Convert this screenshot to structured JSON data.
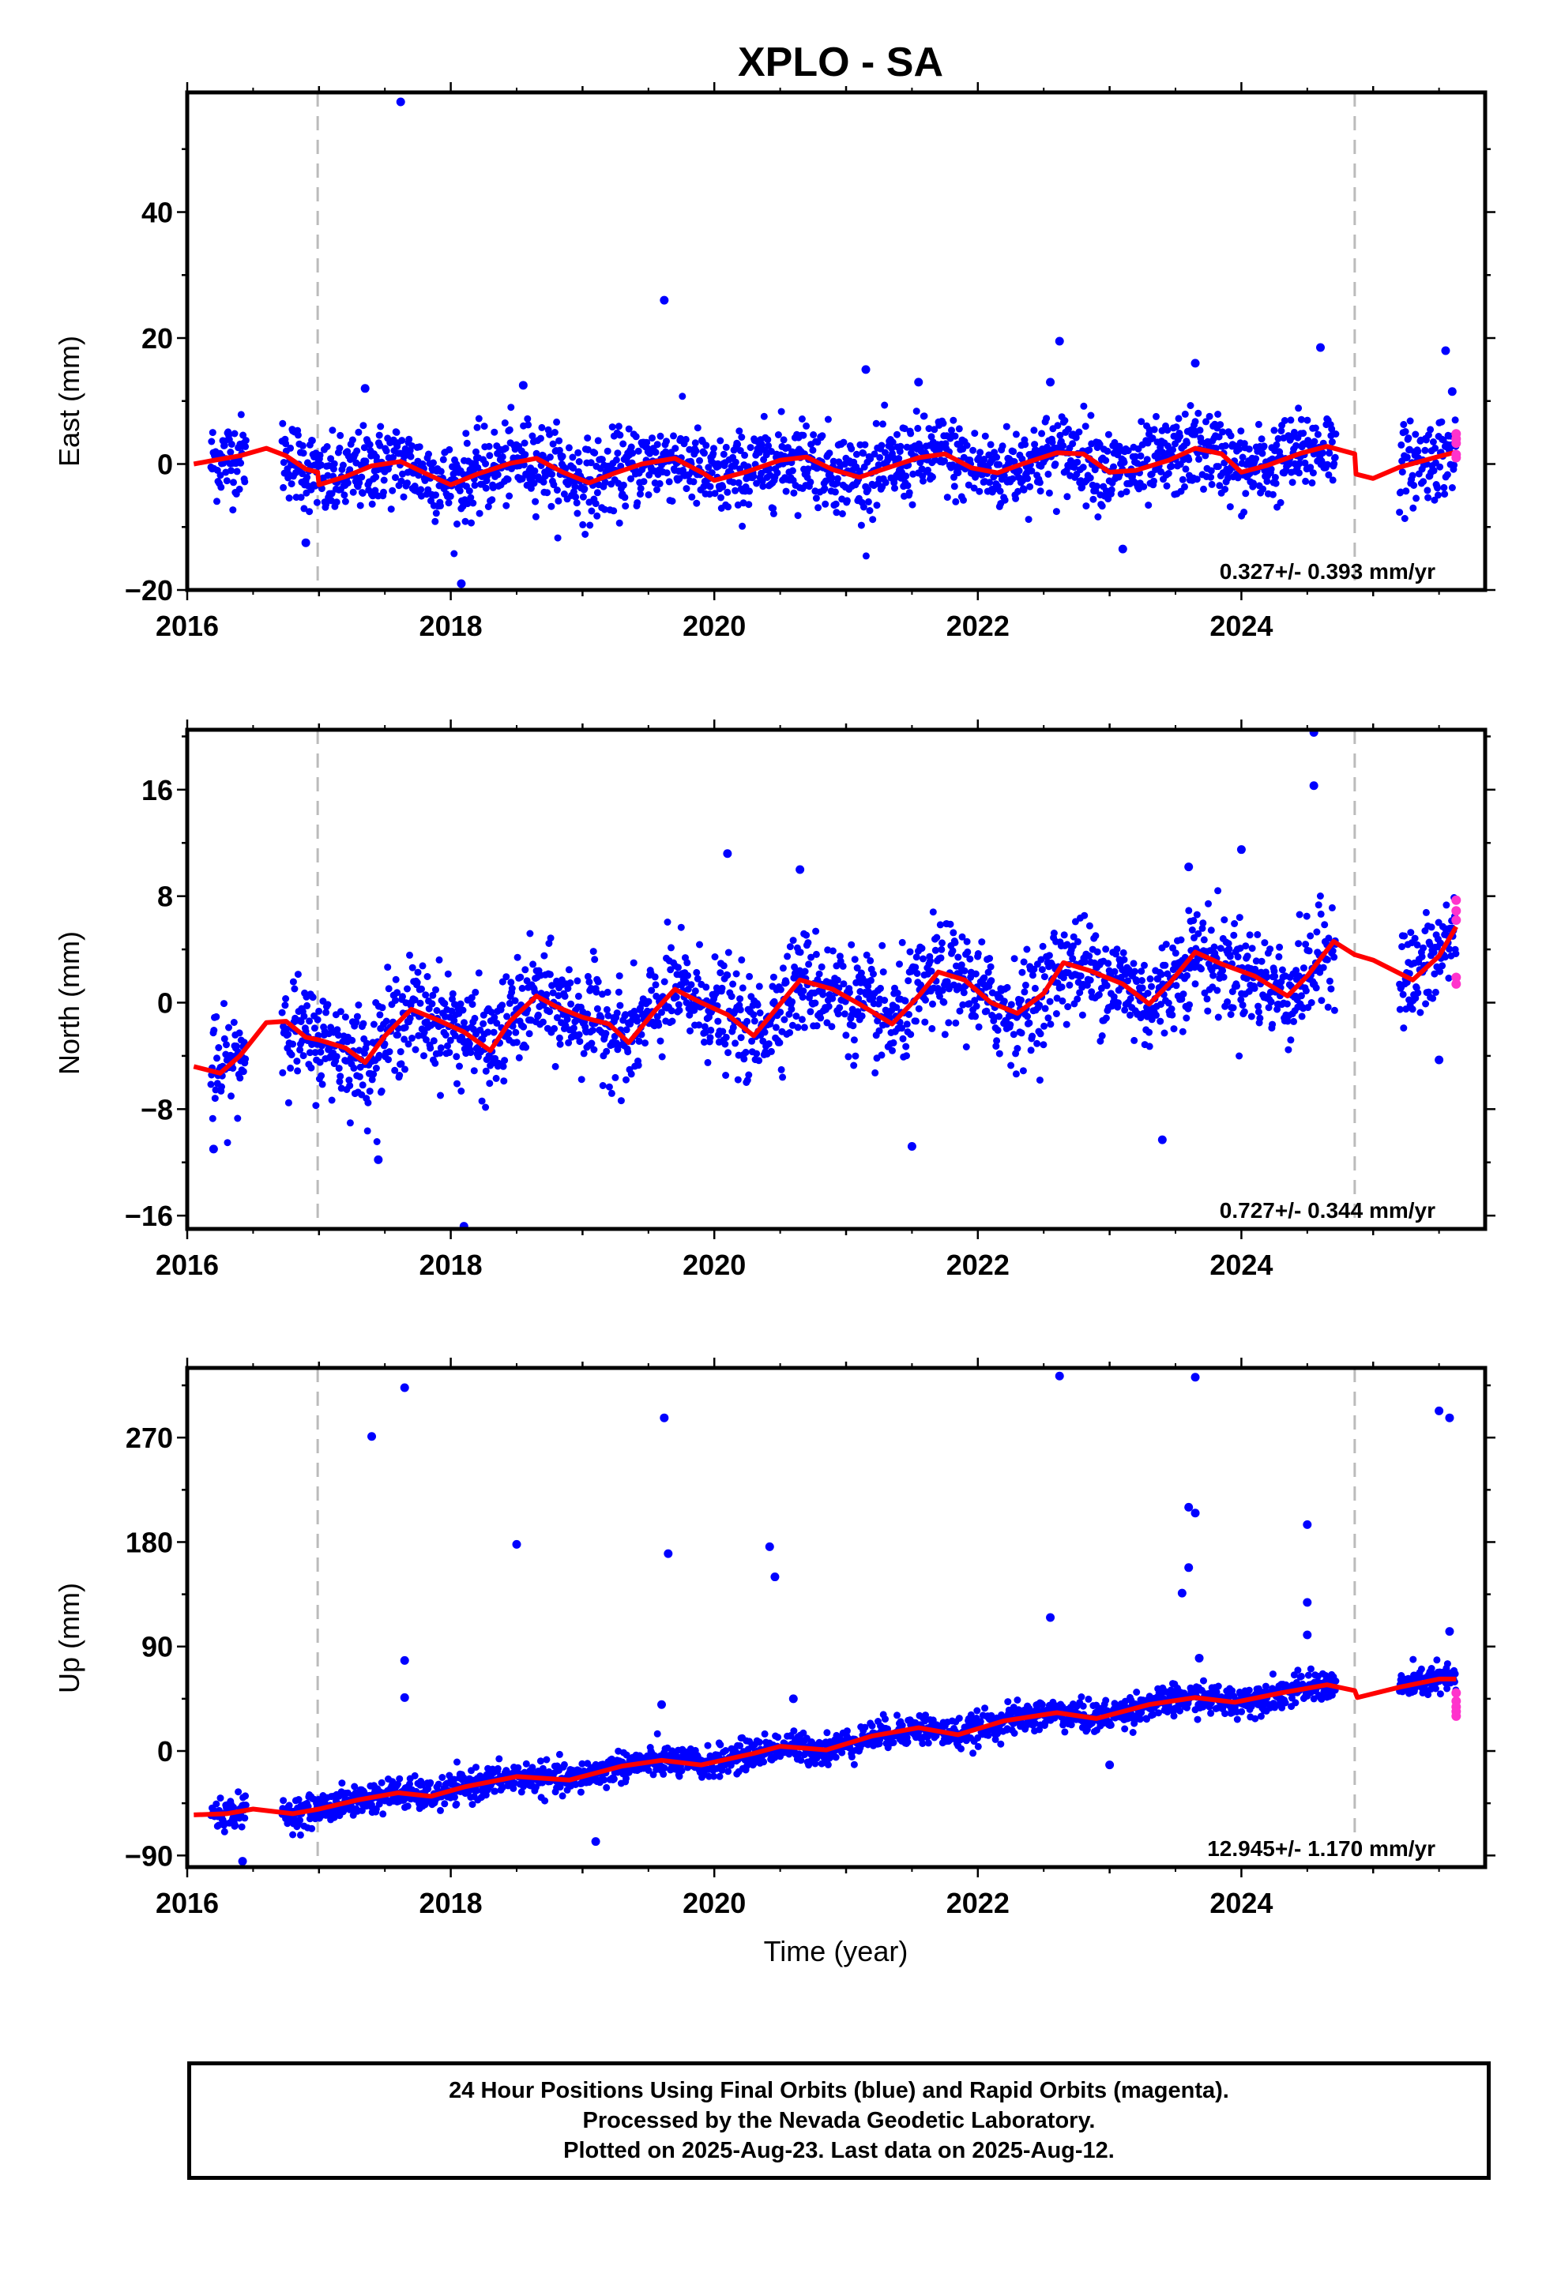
{
  "title": "XPLO - SA",
  "colors": {
    "final_orbits": "#0000ff",
    "rapid_orbits": "#ff33cc",
    "model": "#ff0000",
    "event_lines": "#bbbbbb"
  },
  "event_lines_x": [
    2016.99,
    2024.86
  ],
  "xlabel": "Time (year)",
  "footer": {
    "line1": "24 Hour Positions Using Final Orbits (blue) and Rapid Orbits (magenta).",
    "line2": "Processed by the Nevada Geodetic Laboratory.",
    "line3": "Plotted on 2025-Aug-23. Last data on 2025-Aug-12."
  },
  "chart_data": [
    {
      "type": "scatter",
      "ylabel": "East (mm)",
      "rate_label": "0.327+/- 0.393 mm/yr",
      "xlim": [
        2016.0,
        2025.85
      ],
      "ylim": [
        -20,
        59
      ],
      "x_ticks": [
        2016,
        2018,
        2020,
        2022,
        2024
      ],
      "y_ticks": [
        -20,
        0,
        20,
        40
      ],
      "grid": false,
      "data_spans": [
        [
          2016.18,
          2016.45
        ],
        [
          2016.72,
          2024.72
        ],
        [
          2025.2,
          2025.63
        ]
      ],
      "scatter_sd": 3.2,
      "model_curve": [
        [
          2016.05,
          0.0
        ],
        [
          2016.18,
          0.5
        ],
        [
          2016.4,
          1.3
        ],
        [
          2016.6,
          2.5
        ],
        [
          2016.75,
          1.3
        ],
        [
          2016.9,
          -0.8
        ],
        [
          2016.99,
          -1.3
        ],
        [
          2017.0,
          -3.3
        ],
        [
          2017.2,
          -2.0
        ],
        [
          2017.4,
          -0.3
        ],
        [
          2017.62,
          0.4
        ],
        [
          2017.82,
          -1.6
        ],
        [
          2018.0,
          -3.3
        ],
        [
          2018.2,
          -1.6
        ],
        [
          2018.45,
          0.1
        ],
        [
          2018.65,
          0.9
        ],
        [
          2018.85,
          -1.3
        ],
        [
          2019.05,
          -3.0
        ],
        [
          2019.25,
          -1.4
        ],
        [
          2019.45,
          0.0
        ],
        [
          2019.7,
          0.9
        ],
        [
          2019.92,
          -1.5
        ],
        [
          2020.0,
          -2.6
        ],
        [
          2020.25,
          -1.2
        ],
        [
          2020.5,
          0.6
        ],
        [
          2020.7,
          1.1
        ],
        [
          2020.9,
          -0.9
        ],
        [
          2021.1,
          -2.1
        ],
        [
          2021.3,
          -0.7
        ],
        [
          2021.55,
          1.0
        ],
        [
          2021.75,
          1.6
        ],
        [
          2021.95,
          -0.6
        ],
        [
          2022.15,
          -1.4
        ],
        [
          2022.35,
          0.1
        ],
        [
          2022.6,
          1.8
        ],
        [
          2022.8,
          1.6
        ],
        [
          2023.0,
          -1.3
        ],
        [
          2023.2,
          -1.0
        ],
        [
          2023.45,
          0.6
        ],
        [
          2023.65,
          2.5
        ],
        [
          2023.85,
          1.6
        ],
        [
          2024.0,
          -1.3
        ],
        [
          2024.2,
          -0.2
        ],
        [
          2024.45,
          1.7
        ],
        [
          2024.65,
          2.8
        ],
        [
          2024.86,
          1.6
        ],
        [
          2024.87,
          -1.6
        ],
        [
          2025.0,
          -2.3
        ],
        [
          2025.2,
          -0.5
        ],
        [
          2025.5,
          1.2
        ],
        [
          2025.63,
          1.9
        ]
      ],
      "outliers": [
        [
          2017.62,
          57.5
        ],
        [
          2019.62,
          26
        ],
        [
          2022.62,
          19.5
        ],
        [
          2024.6,
          18.5
        ],
        [
          2025.55,
          18
        ],
        [
          2023.65,
          16
        ],
        [
          2021.15,
          15
        ],
        [
          2021.55,
          13
        ],
        [
          2022.55,
          13
        ],
        [
          2023.1,
          -13.5
        ],
        [
          2018.08,
          -19
        ],
        [
          2016.9,
          -12.5
        ],
        [
          2025.6,
          11.5
        ],
        [
          2017.35,
          12
        ],
        [
          2018.55,
          12.5
        ]
      ],
      "rapid_points": [
        [
          2025.63,
          4.8
        ],
        [
          2025.63,
          4.0
        ],
        [
          2025.63,
          3.3
        ],
        [
          2025.63,
          1.5
        ],
        [
          2025.63,
          1.0
        ]
      ]
    },
    {
      "type": "scatter",
      "ylabel": "North (mm)",
      "rate_label": "0.727+/- 0.344 mm/yr",
      "xlim": [
        2016.0,
        2025.85
      ],
      "ylim": [
        -17,
        20.5
      ],
      "x_ticks": [
        2016,
        2018,
        2020,
        2022,
        2024
      ],
      "y_ticks": [
        -16,
        -8,
        0,
        8,
        16
      ],
      "grid": false,
      "data_spans": [
        [
          2016.18,
          2016.45
        ],
        [
          2016.72,
          2024.72
        ],
        [
          2025.2,
          2025.63
        ]
      ],
      "scatter_sd": 1.9,
      "model_curve": [
        [
          2016.05,
          -4.8
        ],
        [
          2016.25,
          -5.3
        ],
        [
          2016.4,
          -4.0
        ],
        [
          2016.6,
          -1.5
        ],
        [
          2016.75,
          -1.4
        ],
        [
          2016.9,
          -2.6
        ],
        [
          2017.0,
          -2.8
        ],
        [
          2017.2,
          -3.4
        ],
        [
          2017.35,
          -4.5
        ],
        [
          2017.5,
          -2.5
        ],
        [
          2017.7,
          -0.5
        ],
        [
          2017.9,
          -1.3
        ],
        [
          2018.1,
          -2.2
        ],
        [
          2018.3,
          -3.6
        ],
        [
          2018.45,
          -1.4
        ],
        [
          2018.65,
          0.5
        ],
        [
          2018.8,
          -0.3
        ],
        [
          2019.0,
          -1.1
        ],
        [
          2019.2,
          -1.6
        ],
        [
          2019.35,
          -3.0
        ],
        [
          2019.55,
          -0.6
        ],
        [
          2019.7,
          1.0
        ],
        [
          2019.9,
          0.0
        ],
        [
          2020.1,
          -0.9
        ],
        [
          2020.3,
          -2.5
        ],
        [
          2020.55,
          0.5
        ],
        [
          2020.65,
          1.7
        ],
        [
          2020.9,
          1.0
        ],
        [
          2021.1,
          -0.1
        ],
        [
          2021.35,
          -1.6
        ],
        [
          2021.55,
          0.5
        ],
        [
          2021.7,
          2.3
        ],
        [
          2021.9,
          1.7
        ],
        [
          2022.1,
          0.0
        ],
        [
          2022.3,
          -0.8
        ],
        [
          2022.5,
          0.7
        ],
        [
          2022.65,
          3.0
        ],
        [
          2022.85,
          2.4
        ],
        [
          2023.1,
          1.4
        ],
        [
          2023.3,
          -0.1
        ],
        [
          2023.45,
          1.4
        ],
        [
          2023.65,
          3.8
        ],
        [
          2023.85,
          2.9
        ],
        [
          2024.1,
          2.0
        ],
        [
          2024.35,
          0.5
        ],
        [
          2024.5,
          2.0
        ],
        [
          2024.7,
          4.6
        ],
        [
          2024.86,
          3.6
        ],
        [
          2025.0,
          3.2
        ],
        [
          2025.3,
          1.7
        ],
        [
          2025.5,
          3.5
        ],
        [
          2025.63,
          5.7
        ]
      ],
      "outliers": [
        [
          2024.55,
          20.3
        ],
        [
          2024.55,
          16.3
        ],
        [
          2024.0,
          11.5
        ],
        [
          2020.1,
          11.2
        ],
        [
          2020.65,
          10.0
        ],
        [
          2023.6,
          10.2
        ],
        [
          2018.1,
          -16.8
        ],
        [
          2017.45,
          -11.8
        ],
        [
          2016.2,
          -11
        ],
        [
          2021.5,
          -10.8
        ],
        [
          2023.4,
          -10.3
        ],
        [
          2025.5,
          -4.3
        ]
      ],
      "rapid_points": [
        [
          2025.63,
          7.7
        ],
        [
          2025.63,
          6.9
        ],
        [
          2025.63,
          6.2
        ],
        [
          2025.63,
          1.9
        ],
        [
          2025.63,
          1.4
        ]
      ]
    },
    {
      "type": "scatter",
      "ylabel": "Up (mm)",
      "rate_label": "12.945+/- 1.170 mm/yr",
      "xlim": [
        2016.0,
        2025.85
      ],
      "ylim": [
        -100,
        330
      ],
      "x_ticks": [
        2016,
        2018,
        2020,
        2022,
        2024
      ],
      "y_ticks": [
        -90,
        0,
        90,
        180,
        270
      ],
      "grid": false,
      "data_spans": [
        [
          2016.18,
          2016.45
        ],
        [
          2016.72,
          2024.72
        ],
        [
          2025.2,
          2025.63
        ]
      ],
      "scatter_sd": 6.5,
      "model_curve": [
        [
          2016.05,
          -55
        ],
        [
          2016.3,
          -54
        ],
        [
          2016.5,
          -50
        ],
        [
          2016.8,
          -54
        ],
        [
          2017.0,
          -50
        ],
        [
          2017.3,
          -42
        ],
        [
          2017.6,
          -36
        ],
        [
          2017.85,
          -39
        ],
        [
          2018.1,
          -31
        ],
        [
          2018.5,
          -22
        ],
        [
          2018.9,
          -25
        ],
        [
          2019.3,
          -13
        ],
        [
          2019.6,
          -8
        ],
        [
          2019.9,
          -12
        ],
        [
          2020.3,
          -2
        ],
        [
          2020.5,
          4
        ],
        [
          2020.85,
          1
        ],
        [
          2021.2,
          13
        ],
        [
          2021.55,
          20
        ],
        [
          2021.85,
          14
        ],
        [
          2022.2,
          26
        ],
        [
          2022.6,
          33
        ],
        [
          2022.9,
          28
        ],
        [
          2023.3,
          40
        ],
        [
          2023.65,
          46
        ],
        [
          2023.95,
          42
        ],
        [
          2024.3,
          50
        ],
        [
          2024.65,
          57
        ],
        [
          2024.86,
          52
        ],
        [
          2024.88,
          46
        ],
        [
          2025.2,
          55
        ],
        [
          2025.5,
          62
        ],
        [
          2025.63,
          62
        ]
      ],
      "outliers": [
        [
          2022.62,
          323
        ],
        [
          2023.65,
          322
        ],
        [
          2017.65,
          313
        ],
        [
          2025.5,
          293
        ],
        [
          2025.58,
          287
        ],
        [
          2019.62,
          287
        ],
        [
          2017.4,
          271
        ],
        [
          2023.6,
          210
        ],
        [
          2023.65,
          205
        ],
        [
          2024.5,
          195
        ],
        [
          2018.5,
          178
        ],
        [
          2020.42,
          176
        ],
        [
          2019.65,
          170
        ],
        [
          2023.6,
          158
        ],
        [
          2020.46,
          150
        ],
        [
          2023.55,
          136
        ],
        [
          2024.5,
          128
        ],
        [
          2022.55,
          115
        ],
        [
          2024.5,
          100
        ],
        [
          2025.58,
          103
        ],
        [
          2017.65,
          78
        ],
        [
          2023.68,
          80
        ],
        [
          2017.65,
          46
        ],
        [
          2019.6,
          40
        ],
        [
          2020.6,
          45
        ],
        [
          2019.1,
          -78
        ],
        [
          2016.42,
          -95
        ],
        [
          2023.0,
          -12
        ]
      ],
      "rapid_points": [
        [
          2025.63,
          50
        ],
        [
          2025.63,
          43
        ],
        [
          2025.63,
          38
        ],
        [
          2025.63,
          34
        ],
        [
          2025.63,
          30
        ]
      ]
    }
  ]
}
